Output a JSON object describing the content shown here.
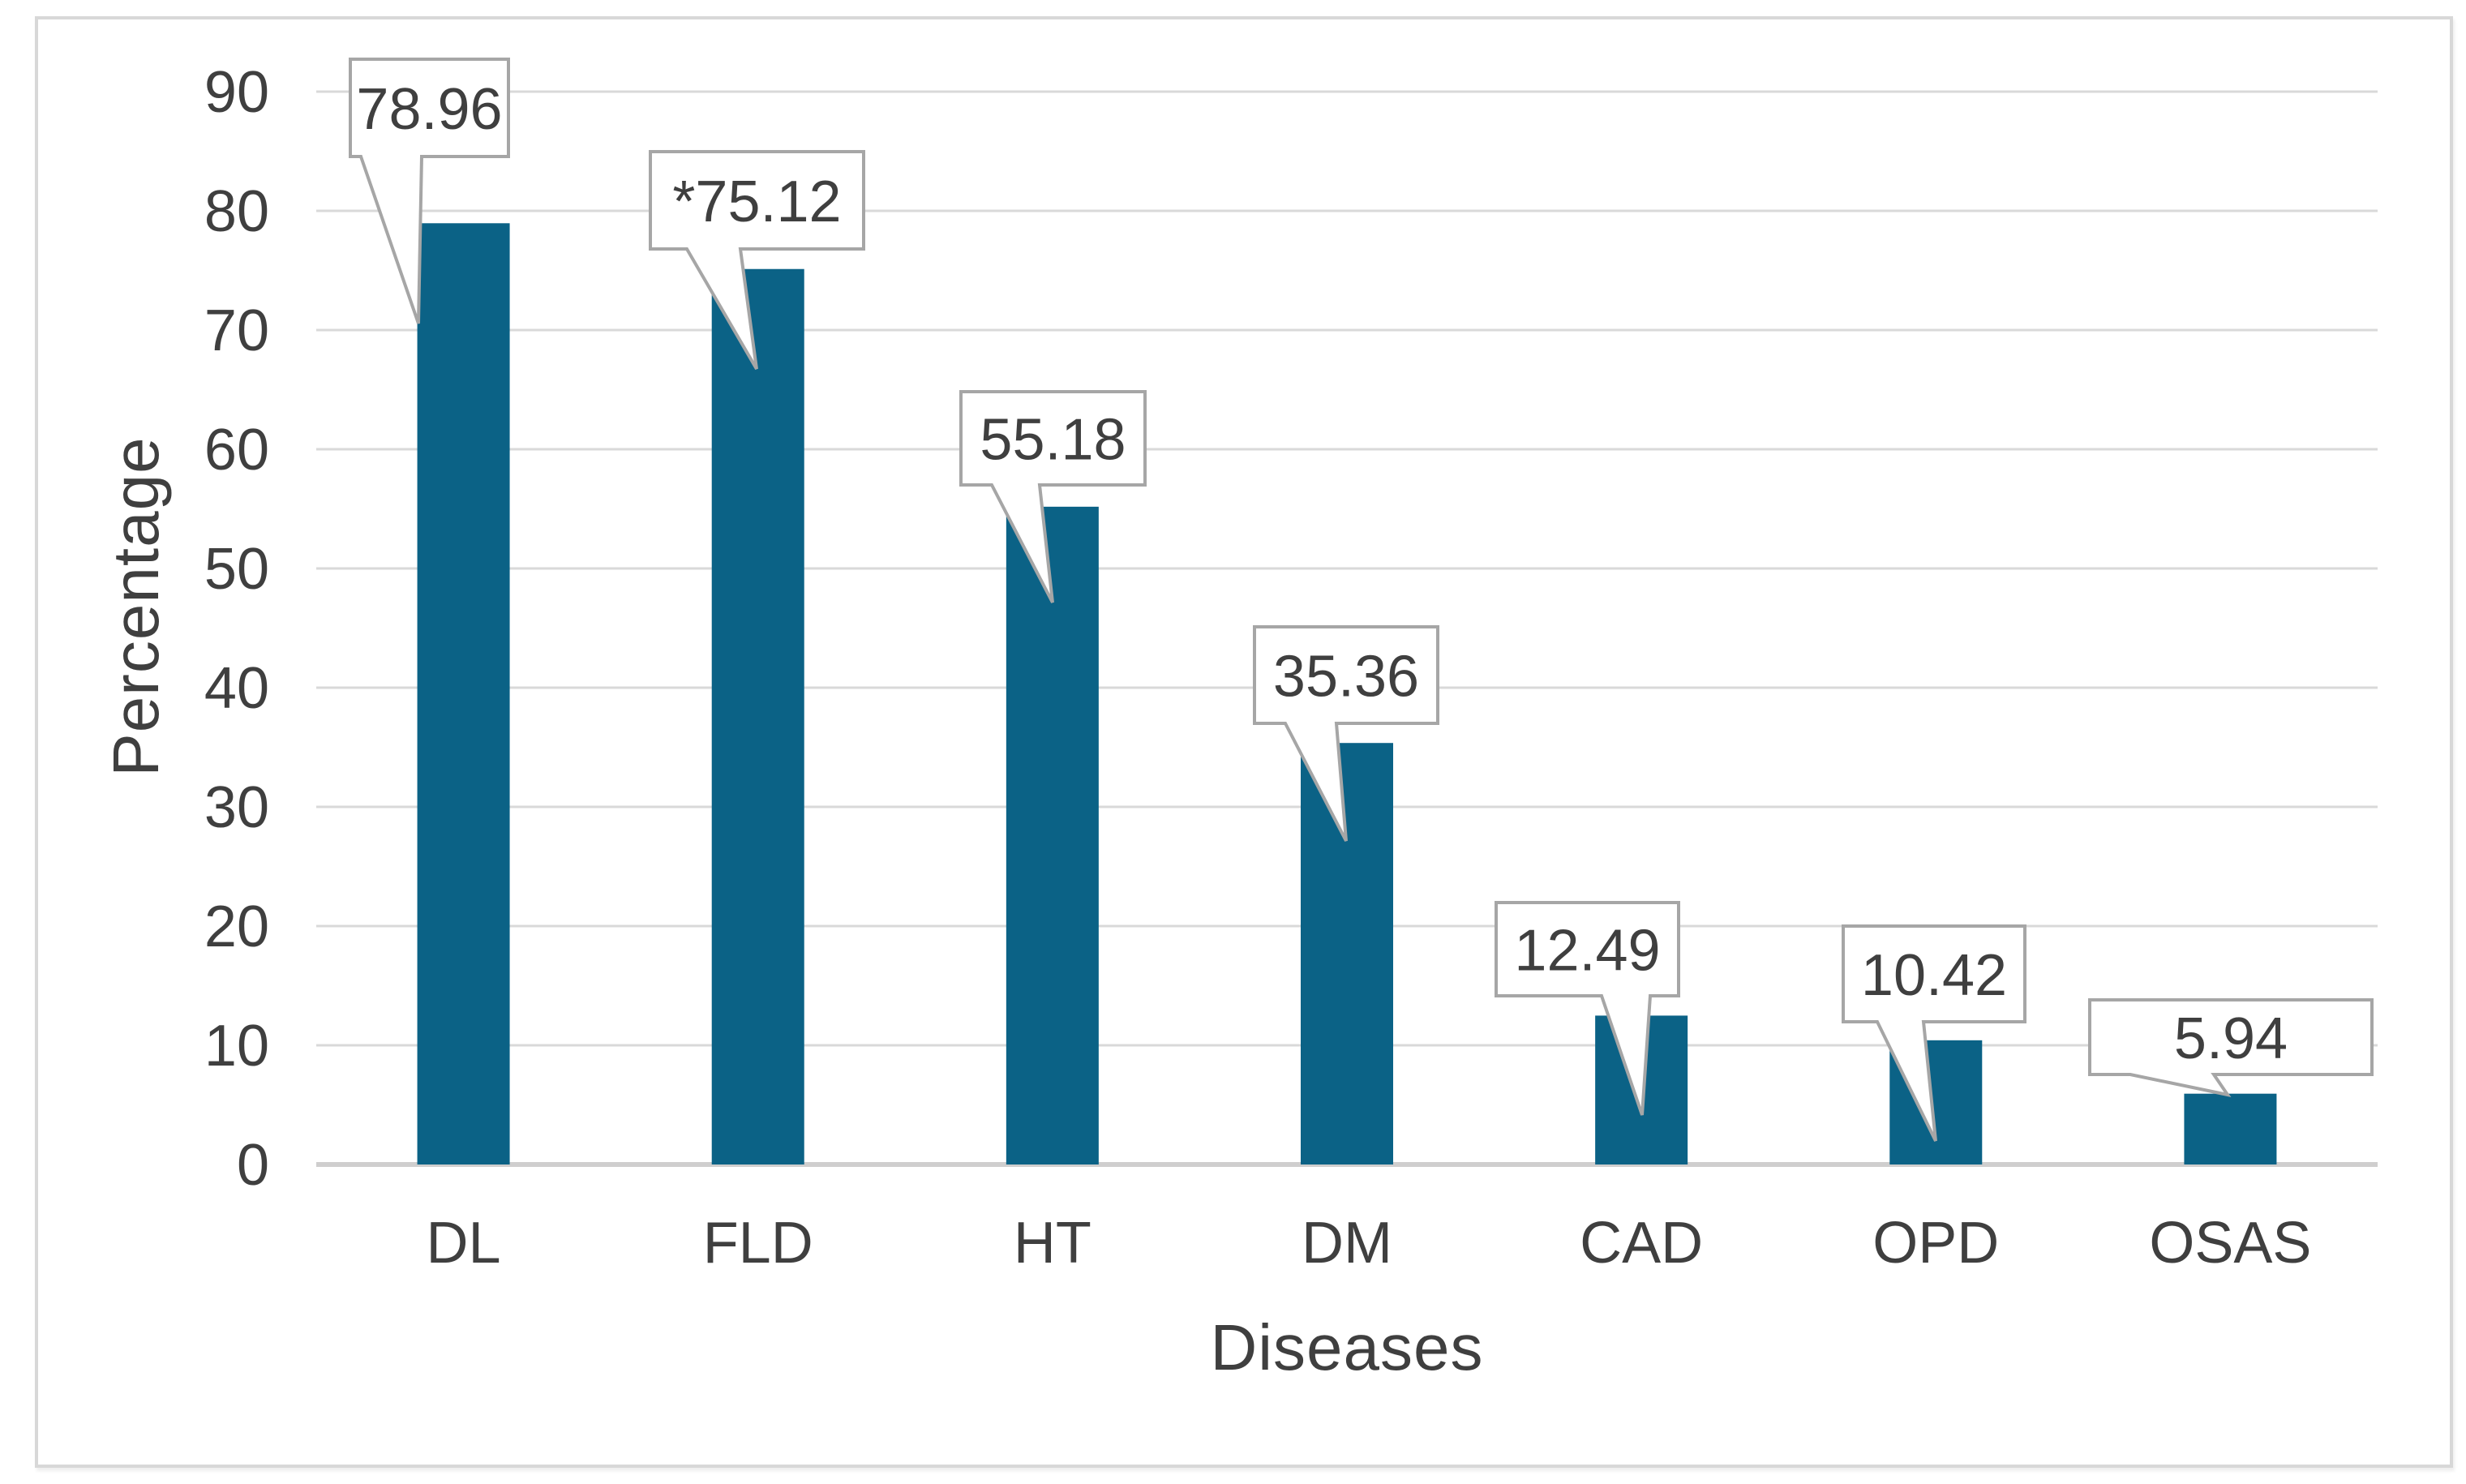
{
  "chart_data": {
    "type": "bar",
    "title": "",
    "categories": [
      "DL",
      "FLD",
      "HT",
      "DM",
      "CAD",
      "OPD",
      "OSAS"
    ],
    "values": [
      78.96,
      75.12,
      55.18,
      35.36,
      12.49,
      10.42,
      5.94
    ],
    "data_labels": [
      "78.96",
      "*75.12",
      "55.18",
      "35.36",
      "12.49",
      "10.42",
      "5.94"
    ],
    "xlabel": "Diseases",
    "ylabel": "Percentage",
    "ylim": [
      0,
      90
    ],
    "ytick_step": 10,
    "yticks": [
      "0",
      "10",
      "20",
      "30",
      "40",
      "50",
      "60",
      "70",
      "80",
      "90"
    ],
    "grid": "horizontal-only",
    "legend": "none",
    "colors": {
      "bar_fill": "#0b6286",
      "gridline": "#d9d9d9",
      "baseline": "#cfcece",
      "callout_border": "#a6a6a6",
      "callout_fill": "#ffffff",
      "text": "#3f3f3f",
      "frame_border": "#d8d8d8"
    }
  }
}
